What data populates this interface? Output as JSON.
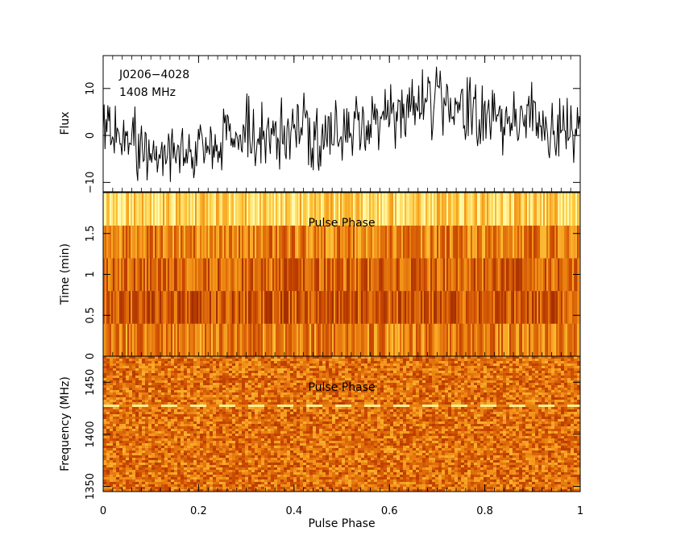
{
  "chart_data": [
    {
      "panel": "profile",
      "type": "line",
      "annotations": [
        "J0206−4028",
        "1408 MHz"
      ],
      "ylabel": "Flux",
      "xlim": [
        0,
        1
      ],
      "ylim": [
        -12,
        17
      ],
      "yticks": [
        -10,
        0,
        10
      ],
      "ytick_labels": [
        "−10",
        "0",
        "10"
      ],
      "n_bins": 512,
      "phase_flux": [
        [
          0,
          3
        ],
        [
          0.1,
          -4
        ],
        [
          0.2,
          -3
        ],
        [
          0.3,
          0
        ],
        [
          0.4,
          1
        ],
        [
          0.5,
          0
        ],
        [
          0.6,
          5
        ],
        [
          0.7,
          8
        ],
        [
          0.8,
          3
        ],
        [
          0.9,
          4
        ],
        [
          1,
          1
        ]
      ]
    },
    {
      "panel": "time-phase",
      "type": "heatmap",
      "annotation": "Pulse Phase",
      "ylabel": "Time (min)",
      "xlim": [
        0,
        1
      ],
      "ylim": [
        0,
        2
      ],
      "yticks": [
        0,
        0.5,
        1,
        1.5
      ],
      "ytick_labels": [
        "0",
        "0.5",
        "1",
        "1.5"
      ],
      "n_subints": 5,
      "subint_brightness": [
        0.55,
        0.4,
        0.45,
        0.55,
        0.85
      ]
    },
    {
      "panel": "frequency-phase",
      "type": "heatmap",
      "annotation": "Pulse Phase",
      "ylabel": "Frequency (MHz)",
      "xlabel": "Pulse Phase",
      "xlim": [
        0,
        1
      ],
      "ylim": [
        1345,
        1475
      ],
      "yticks": [
        1350,
        1400,
        1450
      ],
      "ytick_labels": [
        "1350",
        "1400",
        "1450"
      ],
      "xticks": [
        0,
        0.2,
        0.4,
        0.6,
        0.8,
        1
      ],
      "xtick_labels": [
        "0",
        "0.2",
        "0.4",
        "0.6",
        "0.8",
        "1"
      ],
      "rfi_channel_mhz": 1427
    }
  ]
}
